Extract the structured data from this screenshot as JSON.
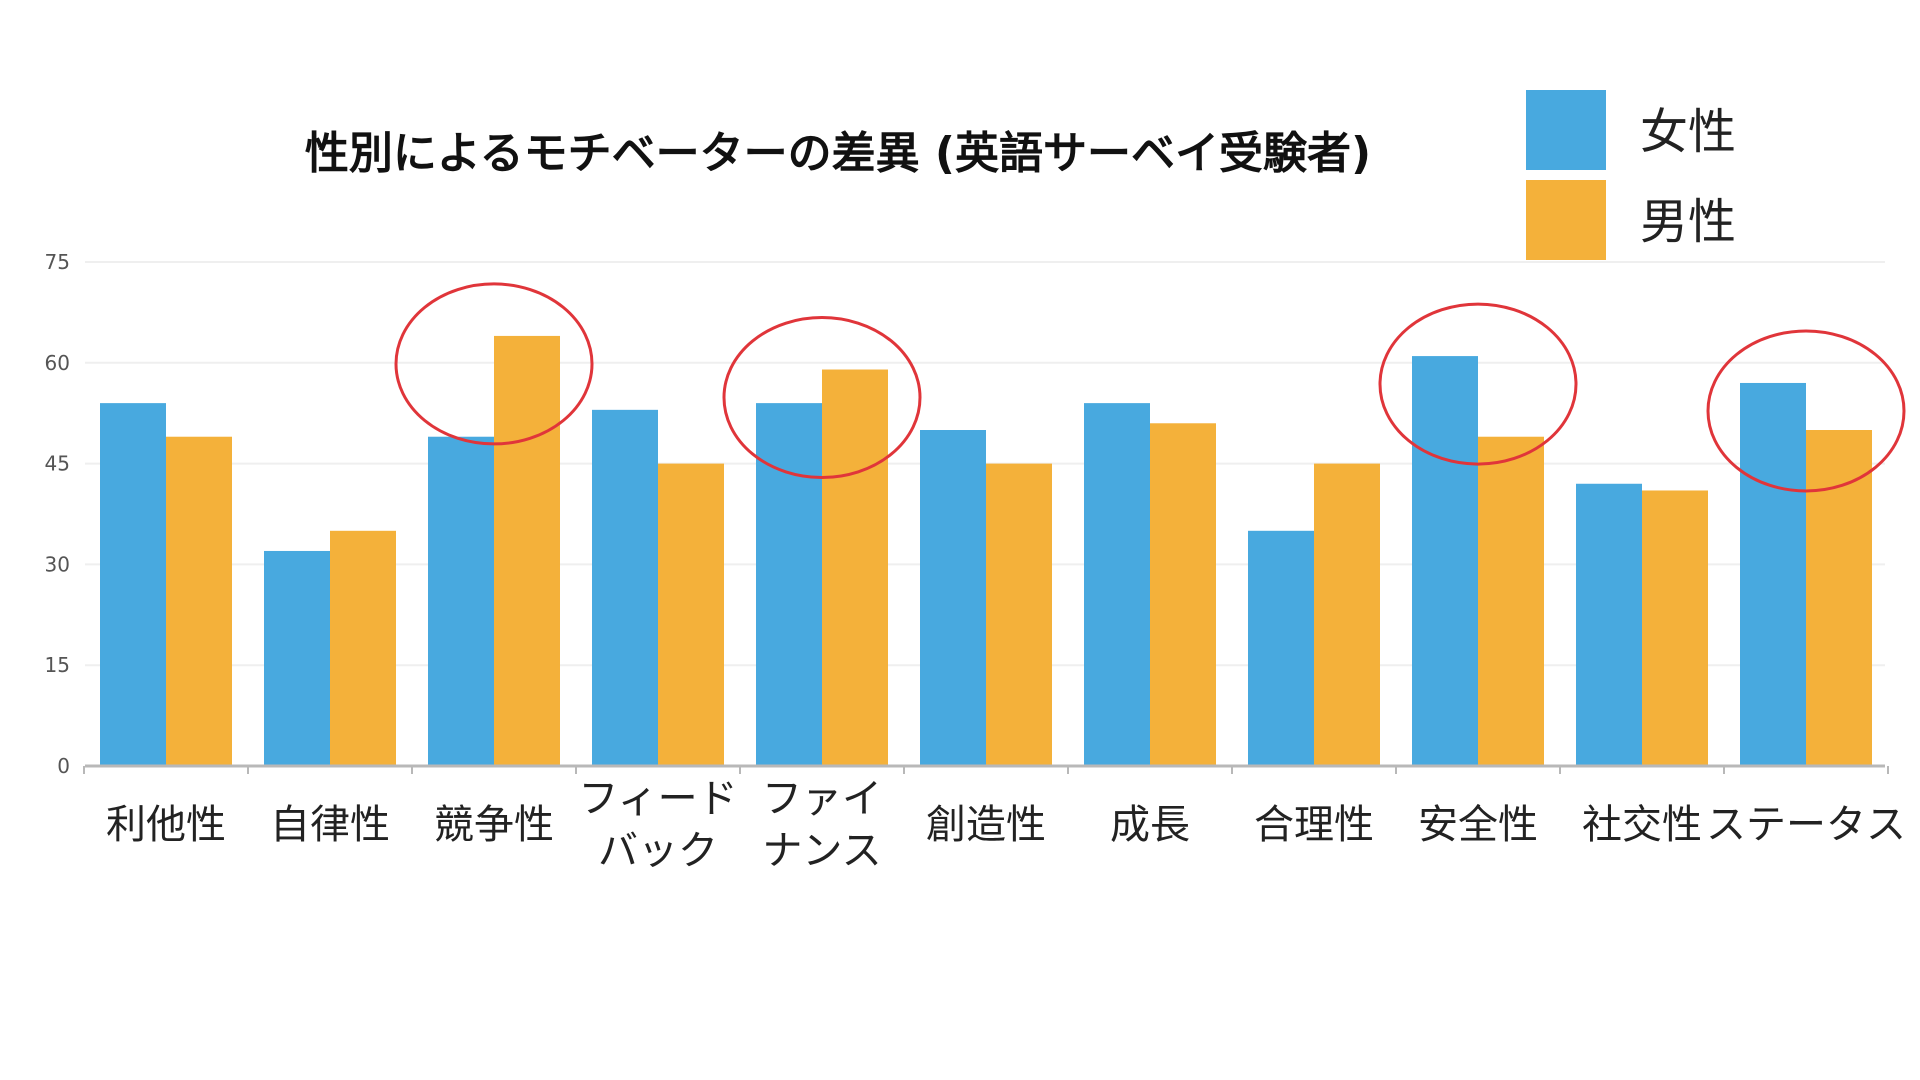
{
  "chart_data": {
    "type": "bar",
    "title": "性別によるモチベーターの差異 (英語サーベイ受験者)",
    "xlabel": "",
    "ylabel": "",
    "categories": [
      [
        "利他性"
      ],
      [
        "自律性"
      ],
      [
        "競争性"
      ],
      [
        "フィード",
        "バック"
      ],
      [
        "ファイ",
        "ナンス"
      ],
      [
        "創造性"
      ],
      [
        "成長"
      ],
      [
        "合理性"
      ],
      [
        "安全性"
      ],
      [
        "社交性"
      ],
      [
        "ステータス"
      ]
    ],
    "series": [
      {
        "name": "女性",
        "color": "#48a9df",
        "values": [
          54,
          32,
          49,
          53,
          54,
          50,
          54,
          35,
          61,
          42,
          57
        ]
      },
      {
        "name": "男性",
        "color": "#f4b13a",
        "values": [
          49,
          35,
          64,
          45,
          59,
          45,
          51,
          45,
          49,
          41,
          50
        ]
      }
    ],
    "yticks": [
      0,
      15,
      30,
      45,
      60,
      75
    ],
    "ylim": [
      0,
      75
    ],
    "grid": true,
    "legend": "top-right",
    "highlighted_categories": [
      2,
      4,
      8,
      10
    ],
    "highlight_color": "#e0353a"
  }
}
